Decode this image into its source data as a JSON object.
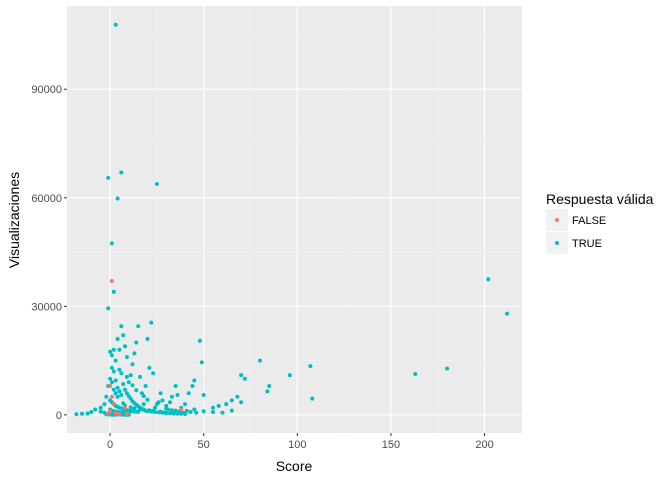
{
  "chart_data": {
    "type": "scatter",
    "title": "",
    "xlabel": "Score",
    "ylabel": "Visualizaciones",
    "xlim": [
      -23,
      220
    ],
    "ylim": [
      -5000,
      113000
    ],
    "x_ticks": [
      0,
      50,
      100,
      150,
      200
    ],
    "x_tick_labels": [
      "0",
      "50",
      "100",
      "150",
      "200"
    ],
    "y_ticks": [
      0,
      30000,
      60000,
      90000
    ],
    "y_tick_labels": [
      "0",
      "30000",
      "60000",
      "90000"
    ],
    "grid": true,
    "legend": {
      "title": "Respuesta válida",
      "placement": "right",
      "entries": [
        {
          "label": "FALSE",
          "color": "#F8766D"
        },
        {
          "label": "TRUE",
          "color": "#00BFC4"
        }
      ]
    },
    "series": [
      {
        "name": "TRUE",
        "color": "#00BFC4",
        "points": [
          [
            3,
            107800
          ],
          [
            25,
            63800
          ],
          [
            6,
            67000
          ],
          [
            -1,
            65500
          ],
          [
            4,
            59800
          ],
          [
            1,
            47400
          ],
          [
            2,
            34000
          ],
          [
            -1,
            29500
          ],
          [
            202,
            37500
          ],
          [
            212,
            28000
          ],
          [
            163,
            11300
          ],
          [
            180,
            12800
          ],
          [
            96,
            11000
          ],
          [
            107,
            13500
          ],
          [
            108,
            4500
          ],
          [
            84,
            6500
          ],
          [
            85,
            8000
          ],
          [
            80,
            15000
          ],
          [
            70,
            11000
          ],
          [
            72,
            10000
          ],
          [
            68,
            5000
          ],
          [
            65,
            4000
          ],
          [
            62,
            3000
          ],
          [
            58,
            2500
          ],
          [
            55,
            2000
          ],
          [
            50,
            5500
          ],
          [
            48,
            20500
          ],
          [
            49,
            14500
          ],
          [
            44,
            8000
          ],
          [
            45,
            9500
          ],
          [
            42,
            6000
          ],
          [
            40,
            3000
          ],
          [
            38,
            2000
          ],
          [
            36,
            5500
          ],
          [
            35,
            8000
          ],
          [
            33,
            5000
          ],
          [
            32,
            3500
          ],
          [
            30,
            2500
          ],
          [
            28,
            4000
          ],
          [
            27,
            6000
          ],
          [
            26,
            3500
          ],
          [
            24,
            2000
          ],
          [
            23,
            11500
          ],
          [
            22,
            25500
          ],
          [
            21,
            13000
          ],
          [
            20,
            21000
          ],
          [
            19,
            8000
          ],
          [
            18,
            3000
          ],
          [
            17,
            6000
          ],
          [
            16,
            10500
          ],
          [
            15,
            24500
          ],
          [
            14,
            20000
          ],
          [
            13,
            17000
          ],
          [
            12,
            14000
          ],
          [
            11,
            11000
          ],
          [
            10,
            9000
          ],
          [
            9,
            16000
          ],
          [
            8,
            19000
          ],
          [
            7,
            22000
          ],
          [
            6,
            24500
          ],
          [
            5,
            18000
          ],
          [
            4,
            21000
          ],
          [
            3,
            15000
          ],
          [
            2,
            18000
          ],
          [
            1,
            13000
          ],
          [
            0,
            10000
          ],
          [
            -1,
            8000
          ],
          [
            -2,
            5000
          ],
          [
            -3,
            3000
          ],
          [
            -5,
            2000
          ],
          [
            -8,
            1500
          ],
          [
            -10,
            800
          ],
          [
            -12,
            400
          ],
          [
            -15,
            300
          ],
          [
            -18,
            200
          ],
          [
            -5,
            900
          ],
          [
            -3,
            600
          ],
          [
            2,
            12000
          ],
          [
            3,
            9500
          ],
          [
            4,
            7500
          ],
          [
            5,
            6500
          ],
          [
            6,
            5500
          ],
          [
            7,
            8500
          ],
          [
            8,
            7000
          ],
          [
            9,
            6000
          ],
          [
            10,
            5200
          ],
          [
            11,
            4500
          ],
          [
            12,
            3800
          ],
          [
            13,
            3200
          ],
          [
            14,
            2800
          ],
          [
            15,
            2400
          ],
          [
            16,
            2000
          ],
          [
            17,
            1700
          ],
          [
            18,
            1400
          ],
          [
            19,
            1200
          ],
          [
            20,
            1000
          ],
          [
            22,
            900
          ],
          [
            24,
            800
          ],
          [
            26,
            700
          ],
          [
            28,
            600
          ],
          [
            30,
            500
          ],
          [
            32,
            450
          ],
          [
            34,
            400
          ],
          [
            36,
            350
          ],
          [
            38,
            300
          ],
          [
            40,
            250
          ],
          [
            0,
            4000
          ],
          [
            1,
            3500
          ],
          [
            2,
            3000
          ],
          [
            3,
            2500
          ],
          [
            4,
            2200
          ],
          [
            5,
            2000
          ],
          [
            6,
            1800
          ],
          [
            7,
            1600
          ],
          [
            8,
            1400
          ],
          [
            9,
            1300
          ],
          [
            10,
            1200
          ],
          [
            11,
            1100
          ],
          [
            12,
            1000
          ],
          [
            13,
            950
          ],
          [
            14,
            900
          ],
          [
            15,
            850
          ],
          [
            0,
            1500
          ],
          [
            1,
            1200
          ],
          [
            2,
            1000
          ],
          [
            3,
            900
          ],
          [
            4,
            800
          ],
          [
            5,
            700
          ],
          [
            6,
            600
          ],
          [
            7,
            550
          ],
          [
            8,
            500
          ],
          [
            9,
            450
          ],
          [
            10,
            400
          ],
          [
            0,
            500
          ],
          [
            1,
            400
          ],
          [
            2,
            300
          ],
          [
            3,
            250
          ],
          [
            4,
            200
          ],
          [
            5,
            150
          ],
          [
            6,
            100
          ],
          [
            7,
            80
          ],
          [
            8,
            60
          ],
          [
            9,
            40
          ],
          [
            10,
            20
          ],
          [
            -2,
            200
          ],
          [
            -1,
            150
          ],
          [
            0,
            100
          ],
          [
            1,
            80
          ],
          [
            2,
            60
          ],
          [
            3,
            50
          ],
          [
            1,
            16500
          ],
          [
            0,
            17500
          ],
          [
            5,
            12500
          ],
          [
            6,
            11500
          ],
          [
            9,
            10500
          ],
          [
            12,
            8200
          ],
          [
            14,
            6800
          ],
          [
            18,
            5200
          ],
          [
            20,
            4200
          ],
          [
            25,
            3000
          ],
          [
            30,
            1800
          ],
          [
            35,
            1200
          ],
          [
            45,
            1500
          ],
          [
            50,
            1000
          ],
          [
            55,
            800
          ],
          [
            60,
            600
          ],
          [
            65,
            1200
          ],
          [
            70,
            3500
          ],
          [
            3,
            6000
          ],
          [
            4,
            5000
          ],
          [
            2,
            7000
          ],
          [
            1,
            9000
          ],
          [
            7,
            3200
          ],
          [
            8,
            2600
          ],
          [
            11,
            2100
          ],
          [
            13,
            1800
          ],
          [
            16,
            1500
          ],
          [
            21,
            1300
          ],
          [
            23,
            1100
          ],
          [
            27,
            900
          ],
          [
            29,
            700
          ],
          [
            31,
            1500
          ],
          [
            33,
            1300
          ],
          [
            37,
            900
          ],
          [
            39,
            600
          ],
          [
            41,
            1100
          ],
          [
            43,
            800
          ],
          [
            46,
            600
          ]
        ]
      },
      {
        "name": "FALSE",
        "color": "#F8766D",
        "points": [
          [
            1,
            37000
          ],
          [
            0,
            8000
          ],
          [
            1,
            5000
          ],
          [
            2,
            3000
          ],
          [
            8,
            2000
          ],
          [
            0,
            1000
          ],
          [
            3,
            500
          ],
          [
            9,
            300
          ],
          [
            5,
            200
          ],
          [
            38,
            1500
          ],
          [
            -1,
            400
          ]
        ]
      }
    ]
  }
}
